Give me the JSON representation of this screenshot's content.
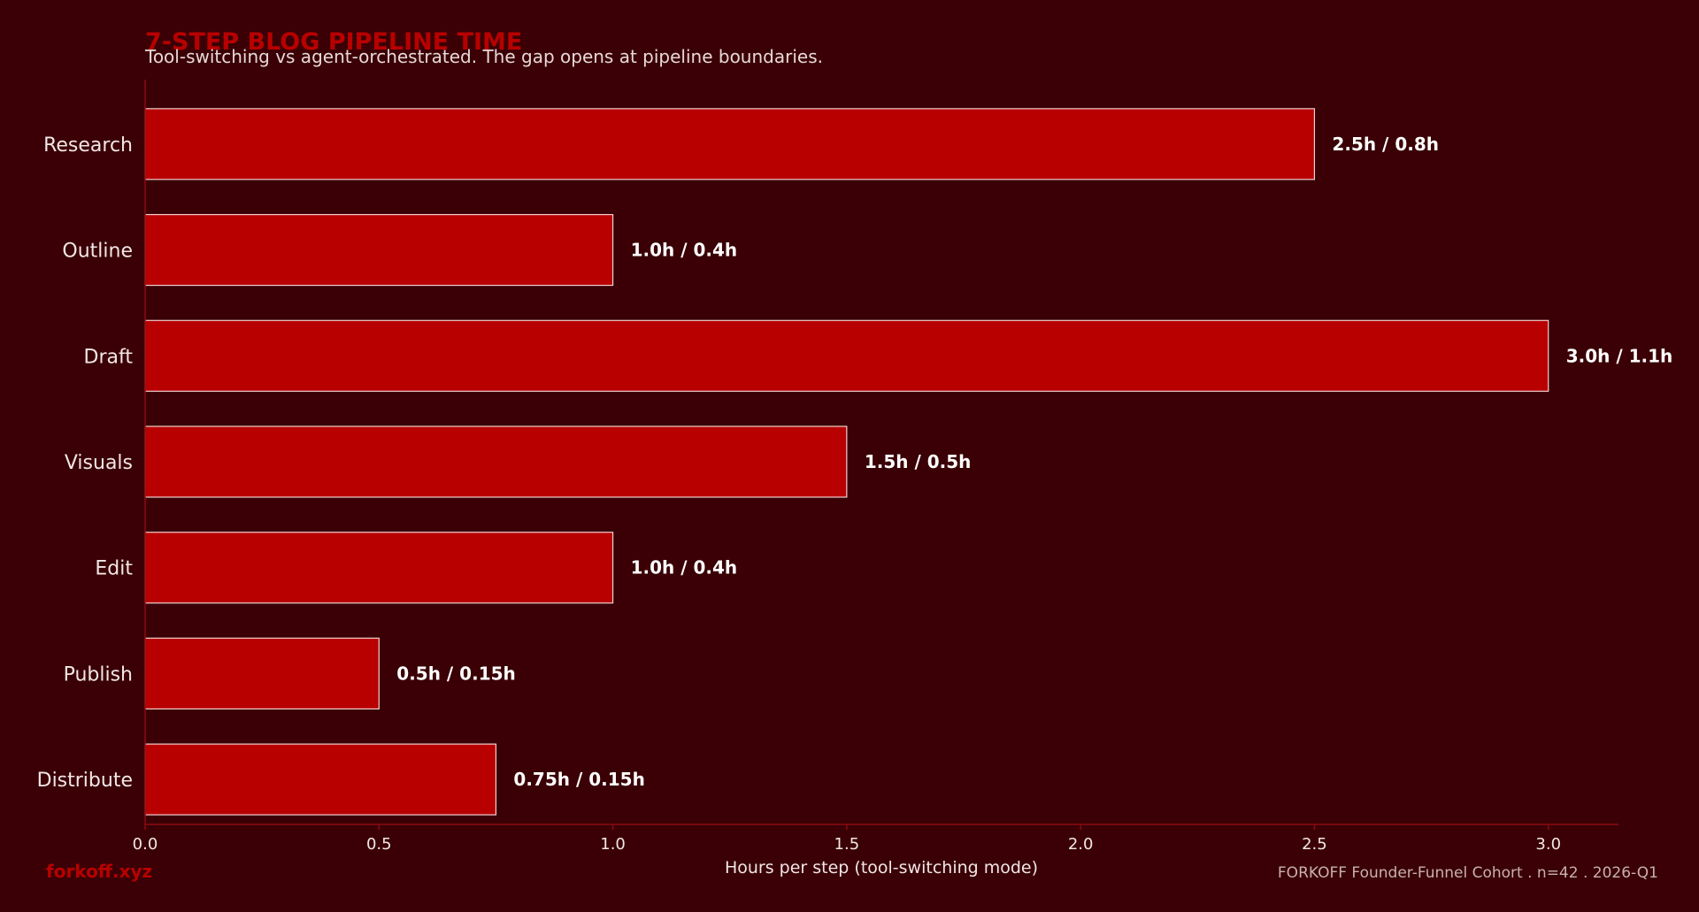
{
  "colors": {
    "background": "#3a0005",
    "bar_fill": "#b80000",
    "bar_stroke": "#f0d0d0",
    "axis": "#8a0a12",
    "title": "#b80000"
  },
  "footer": {
    "brand": "forkoff.xyz",
    "source": "FORKOFF Founder-Funnel Cohort . n=42 . 2026-Q1"
  },
  "chart_data": {
    "type": "bar",
    "orientation": "horizontal",
    "title": "7-STEP BLOG PIPELINE TIME",
    "subtitle": "Tool-switching vs agent-orchestrated. The gap opens at pipeline boundaries.",
    "xlabel": "Hours per step (tool-switching mode)",
    "ylabel": "",
    "categories": [
      "Research",
      "Outline",
      "Draft",
      "Visuals",
      "Edit",
      "Publish",
      "Distribute"
    ],
    "values": [
      2.5,
      1.0,
      3.0,
      1.5,
      1.0,
      0.5,
      0.75
    ],
    "data_labels": [
      "2.5h / 0.8h",
      "1.0h / 0.4h",
      "3.0h / 1.1h",
      "1.5h / 0.5h",
      "1.0h / 0.4h",
      "0.5h / 0.15h",
      "0.75h / 0.15h"
    ],
    "xlim": [
      0,
      3.15
    ],
    "xticks": [
      0.0,
      0.5,
      1.0,
      1.5,
      2.0,
      2.5,
      3.0
    ],
    "xtick_labels": [
      "0.0",
      "0.5",
      "1.0",
      "1.5",
      "2.0",
      "2.5",
      "3.0"
    ],
    "grid": false,
    "legend": "none"
  }
}
